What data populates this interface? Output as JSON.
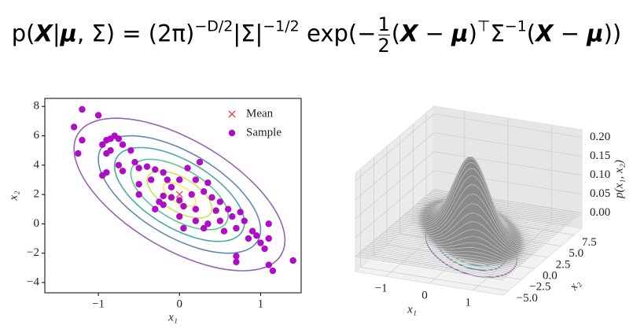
{
  "formula": [
    "p(",
    "X",
    "|",
    "μ",
    ", Σ) = (2π)",
    "−D/2",
    "|Σ|",
    "−1/2",
    " exp(−",
    "1",
    "2",
    "(",
    "X",
    " − ",
    "μ",
    ")",
    "⊤",
    "Σ",
    "−1",
    "(",
    "X",
    " − ",
    "μ",
    "))"
  ],
  "chart_data": [
    {
      "type": "scatter-contour",
      "xlabel": "x₁",
      "ylabel": "x₂",
      "xlim": [
        -1.66,
        1.5
      ],
      "ylim": [
        -4.7,
        8.55
      ],
      "xticks": [
        {
          "value": -1,
          "label": "−1"
        },
        0,
        1
      ],
      "yticks": [
        {
          "value": -4,
          "label": "−4"
        },
        {
          "value": -2,
          "label": "−2"
        },
        0,
        2,
        4,
        6,
        8
      ],
      "mean": [
        0,
        2
      ],
      "cov": [
        [
          0.25,
          -0.6
        ],
        [
          -0.6,
          4
        ]
      ],
      "contour_levels": [
        0.4,
        0.8,
        1.2,
        1.6,
        2.0,
        2.6
      ],
      "contour_colors": [
        "#fde725",
        "#b5de2b",
        "#35b779",
        "#21918c",
        "#3b6a9c",
        "#7a3f9a"
      ],
      "legend": "upper right",
      "series": [
        {
          "name": "Mean",
          "color": "#e8413c",
          "marker": "x",
          "x": [
            0
          ],
          "y": [
            2
          ]
        },
        {
          "name": "Sample",
          "color": "#b00cc8",
          "marker": "o",
          "x": [
            -1.2,
            -1.3,
            -1.0,
            -1.2,
            -1.25,
            -0.95,
            -0.9,
            -0.85,
            -0.8,
            -0.75,
            -0.7,
            -0.9,
            -0.85,
            -0.6,
            -0.55,
            -0.75,
            -0.9,
            -0.95,
            -0.7,
            -0.5,
            -0.4,
            -0.3,
            -0.5,
            -0.35,
            -0.2,
            -0.15,
            -0.1,
            -0.2,
            0.0,
            0.1,
            0.2,
            0.25,
            -0.25,
            -0.2,
            -0.1,
            0.0,
            0.05,
            0.15,
            0.2,
            0.3,
            0.35,
            0.4,
            0.45,
            0.5,
            0.2,
            0.0,
            0.3,
            0.35,
            0.6,
            0.65,
            0.55,
            0.7,
            0.75,
            0.8,
            0.9,
            0.85,
            1.0,
            0.95,
            1.1,
            1.05,
            0.7,
            0.7,
            1.1,
            1.15,
            1.4,
            1.1,
            0.05,
            0.5,
            -0.5,
            -0.3
          ],
          "y": [
            7.8,
            6.6,
            7.4,
            5.7,
            4.8,
            5.4,
            5.7,
            5.8,
            6.0,
            5.8,
            5.4,
            4.8,
            5.0,
            5.0,
            4.2,
            4.0,
            3.5,
            3.3,
            3.6,
            3.8,
            3.9,
            3.7,
            2.7,
            3.0,
            3.5,
            3.0,
            2.5,
            1.9,
            3.0,
            3.8,
            3.0,
            4.2,
            1.5,
            1.3,
            1.8,
            1.6,
            1.2,
            2.0,
            1.0,
            2.2,
            2.8,
            1.8,
            0.9,
            1.5,
            0.2,
            0.5,
            -0.3,
            0.0,
            1.0,
            0.5,
            -0.5,
            -0.3,
            0.8,
            0.2,
            -0.5,
            -1.0,
            -1.3,
            -0.8,
            -1.0,
            -1.7,
            -2.2,
            -2.6,
            -2.8,
            -3.2,
            -2.5,
            0.0,
            -0.3,
            0.2,
            2.0,
            1.0
          ]
        }
      ]
    },
    {
      "type": "surface3d",
      "xlabel": "x₁",
      "ylabel": "x₂",
      "zlabel": "p(x₁, x₂)",
      "xlim": [
        -1.7,
        1.7
      ],
      "ylim": [
        -6,
        9
      ],
      "zlim": [
        -0.04,
        0.22
      ],
      "xticks": [
        {
          "value": -1,
          "label": "−1"
        },
        0,
        1
      ],
      "yticks": [
        {
          "value": -5,
          "label": "−5.0"
        },
        {
          "value": -2.5,
          "label": "−2.5"
        },
        {
          "value": 0,
          "label": "0.0"
        },
        2.5,
        {
          "value": 5,
          "label": "5.0"
        },
        7.5
      ],
      "zticks": [
        {
          "value": 0,
          "label": "0.00"
        },
        0.05,
        {
          "value": 0.1,
          "label": "0.10"
        },
        0.15,
        {
          "value": 0.2,
          "label": "0.20"
        }
      ],
      "mean": [
        0,
        2
      ],
      "cov": [
        [
          0.25,
          -0.6
        ],
        [
          -0.6,
          4
        ]
      ],
      "surface_color": "#8a8a8a",
      "contour_levels": [
        0.4,
        0.8,
        1.2,
        1.6,
        2.0,
        2.6
      ],
      "contour_colors": [
        "#fde725",
        "#b5de2b",
        "#35b779",
        "#21918c",
        "#3b6a9c",
        "#7a3f9a"
      ]
    }
  ]
}
